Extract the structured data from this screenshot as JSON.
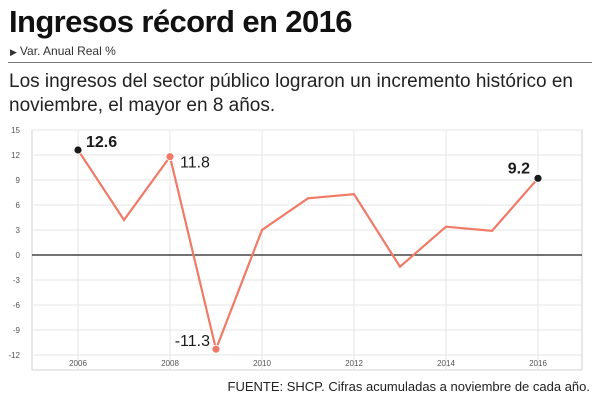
{
  "header": {
    "title": "Ingresos récord en 2016",
    "subtitle": "Var. Anual Real %",
    "description": "Los ingresos del sector público lograron un incremento histórico en noviembre, el mayor en 8 años."
  },
  "source": "FUENTE: SHCP. Cifras acumuladas a noviembre de cada año.",
  "colors": {
    "line": "#f07a67",
    "dot_black": "#1a1a1a",
    "dot_red": "#f07a67",
    "grid": "#e6e6e6",
    "zero": "#222222"
  },
  "chart_data": {
    "type": "line",
    "x": [
      2006,
      2007,
      2008,
      2009,
      2010,
      2011,
      2012,
      2013,
      2014,
      2015,
      2016
    ],
    "series": [
      {
        "values": [
          12.6,
          4.2,
          11.8,
          -11.3,
          3.0,
          6.8,
          7.3,
          -1.4,
          3.4,
          2.9,
          9.2
        ]
      }
    ],
    "xticks": [
      "2006",
      "2008",
      "2010",
      "2012",
      "2014",
      "2016"
    ],
    "yticks": [
      "15",
      "12",
      "9",
      "6",
      "3",
      "0",
      "-3",
      "-6",
      "-9",
      "-12"
    ],
    "ylim": [
      -12,
      15
    ],
    "xlim": [
      2006,
      2016
    ],
    "grid": true,
    "annotations": [
      {
        "x": 2006,
        "y": 12.6,
        "text": "12.6",
        "marker": "black"
      },
      {
        "x": 2008,
        "y": 11.8,
        "text": "11.8",
        "marker": "red"
      },
      {
        "x": 2009,
        "y": -11.3,
        "text": "-11.3",
        "marker": "red"
      },
      {
        "x": 2016,
        "y": 9.2,
        "text": "9.2",
        "marker": "black"
      }
    ]
  }
}
